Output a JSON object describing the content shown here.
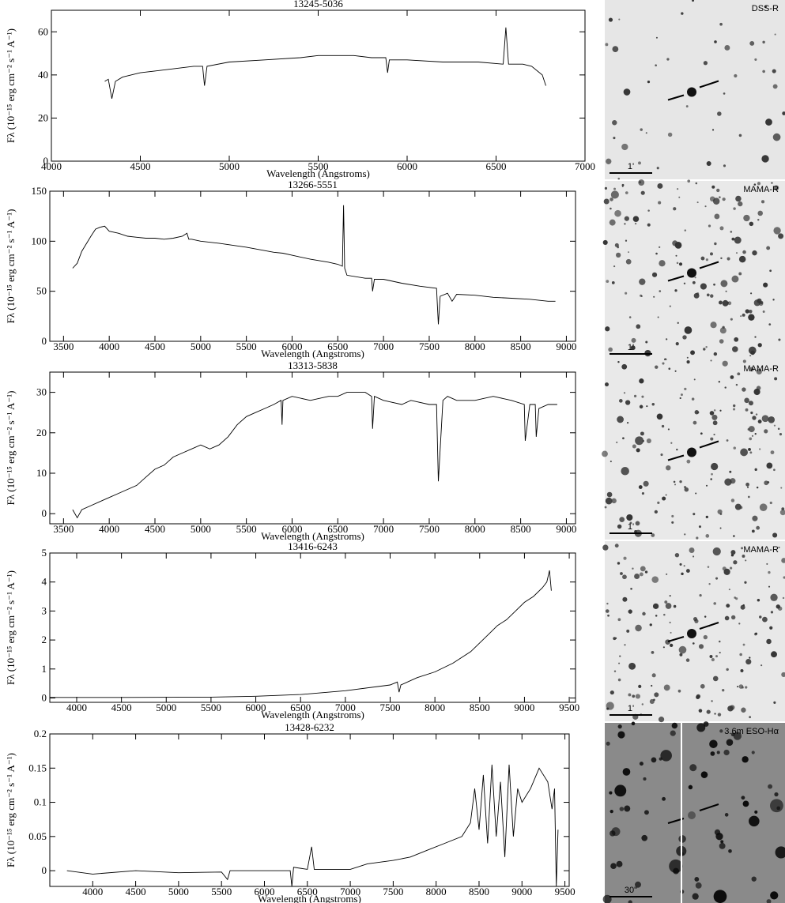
{
  "chart_data": [
    {
      "type": "line",
      "title": "13245-5036",
      "xlabel": "Wavelength (Angstroms)",
      "ylabel": "Fλ (10⁻¹⁵ erg cm⁻² s⁻¹ A⁻¹)",
      "color": "#000000",
      "xlim": [
        4000,
        7000
      ],
      "xticks": [
        4000,
        4500,
        5000,
        5500,
        6000,
        6500,
        7000
      ],
      "ylim": [
        0,
        70
      ],
      "yticks": [
        0,
        20,
        40,
        60
      ],
      "x": [
        4300,
        4320,
        4340,
        4360,
        4400,
        4500,
        4600,
        4700,
        4800,
        4850,
        4861,
        4875,
        5000,
        5200,
        5400,
        5500,
        5600,
        5700,
        5800,
        5880,
        5890,
        5900,
        6000,
        6200,
        6400,
        6540,
        6555,
        6570,
        6650,
        6700,
        6760,
        6780
      ],
      "values": [
        37,
        38,
        29,
        37,
        39,
        41,
        42,
        43,
        44,
        44,
        35,
        44,
        46,
        47,
        48,
        49,
        49,
        49,
        48,
        48,
        41,
        47,
        47,
        46,
        46,
        45,
        62,
        45,
        45,
        44,
        40,
        35
      ]
    },
    {
      "type": "line",
      "title": "13266-5551",
      "xlabel": "Wavelength (Angstroms)",
      "ylabel": "Fλ (10⁻¹⁵ erg cm⁻² s⁻¹ A⁻¹)",
      "color": "#000000",
      "xlim": [
        3350,
        9100
      ],
      "xticks": [
        3500,
        4000,
        4500,
        5000,
        5500,
        6000,
        6500,
        7000,
        7500,
        8000,
        8500,
        9000
      ],
      "ylim": [
        0,
        150
      ],
      "yticks": [
        0,
        50,
        100,
        150
      ],
      "x": [
        3600,
        3650,
        3700,
        3800,
        3850,
        3900,
        3950,
        4000,
        4100,
        4200,
        4300,
        4400,
        4500,
        4600,
        4700,
        4800,
        4850,
        4870,
        4900,
        5000,
        5200,
        5500,
        5800,
        5900,
        6000,
        6200,
        6400,
        6500,
        6550,
        6563,
        6575,
        6600,
        6800,
        6870,
        6880,
        6900,
        7000,
        7200,
        7400,
        7580,
        7600,
        7620,
        7700,
        7750,
        7800,
        8000,
        8200,
        8400,
        8600,
        8800,
        8880
      ],
      "values": [
        73,
        78,
        90,
        105,
        112,
        114,
        115,
        110,
        108,
        105,
        104,
        103,
        103,
        102,
        103,
        105,
        108,
        102,
        102,
        100,
        98,
        94,
        89,
        88,
        86,
        82,
        79,
        77,
        75,
        136,
        73,
        66,
        63,
        63,
        50,
        62,
        62,
        58,
        55,
        53,
        17,
        45,
        48,
        40,
        47,
        46,
        44,
        43,
        42,
        40,
        40
      ]
    },
    {
      "type": "line",
      "title": "13313-5838",
      "xlabel": "Wavelength (Angstroms)",
      "ylabel": "Fλ (10⁻¹⁵ erg cm⁻² s⁻¹ A⁻¹)",
      "color": "#000000",
      "xlim": [
        3350,
        9100
      ],
      "xticks": [
        3500,
        4000,
        4500,
        5000,
        5500,
        6000,
        6500,
        7000,
        7500,
        8000,
        8500,
        9000
      ],
      "ylim": [
        -2.5,
        35
      ],
      "yticks": [
        0,
        10,
        20,
        30
      ],
      "x": [
        3600,
        3650,
        3700,
        3800,
        3900,
        4000,
        4100,
        4200,
        4300,
        4400,
        4500,
        4600,
        4700,
        4800,
        4900,
        5000,
        5100,
        5200,
        5300,
        5400,
        5500,
        5600,
        5700,
        5800,
        5880,
        5890,
        5900,
        6000,
        6200,
        6400,
        6500,
        6600,
        6700,
        6800,
        6870,
        6880,
        6900,
        7000,
        7200,
        7300,
        7500,
        7580,
        7600,
        7650,
        7700,
        7800,
        8000,
        8200,
        8400,
        8540,
        8550,
        8600,
        8660,
        8670,
        8700,
        8800,
        8900
      ],
      "values": [
        1,
        -1,
        1,
        2,
        3,
        4,
        5,
        6,
        7,
        9,
        11,
        12,
        14,
        15,
        16,
        17,
        16,
        17,
        19,
        22,
        24,
        25,
        26,
        27,
        28,
        22,
        28,
        29,
        28,
        29,
        29,
        30,
        30,
        30,
        29,
        21,
        29,
        28,
        27,
        28,
        27,
        27,
        8,
        28,
        29,
        28,
        28,
        29,
        28,
        27,
        18,
        27,
        27,
        19,
        26,
        27,
        27
      ]
    },
    {
      "type": "line",
      "title": "13416-6243",
      "xlabel": "Wavelength (Angstroms)",
      "ylabel": "Fλ (10⁻¹⁵ erg cm⁻² s⁻¹ A⁻¹)",
      "color": "#000000",
      "xlim": [
        3700,
        9570
      ],
      "xticks": [
        4000,
        4500,
        5000,
        5500,
        6000,
        6500,
        7000,
        7500,
        8000,
        8500,
        9000,
        9500
      ],
      "ylim": [
        -0.15,
        5
      ],
      "yticks": [
        0,
        1,
        2,
        3,
        4,
        5
      ],
      "x": [
        3700,
        4500,
        5500,
        6000,
        6500,
        7000,
        7500,
        7580,
        7600,
        7620,
        7800,
        8000,
        8200,
        8400,
        8500,
        8600,
        8700,
        8800,
        8900,
        9000,
        9100,
        9200,
        9250,
        9280,
        9300
      ],
      "values": [
        0.02,
        0.02,
        0.03,
        0.06,
        0.12,
        0.25,
        0.45,
        0.55,
        0.2,
        0.45,
        0.7,
        0.9,
        1.2,
        1.6,
        1.9,
        2.2,
        2.5,
        2.7,
        3.0,
        3.3,
        3.5,
        3.8,
        4.0,
        4.4,
        3.7
      ]
    },
    {
      "type": "line",
      "title": "13428-6232",
      "xlabel": "Wavelength (Angstroms)",
      "ylabel": "Fλ (10⁻¹⁵ erg cm⁻² s⁻¹ A⁻¹)",
      "color": "#000000",
      "xlim": [
        3500,
        9550
      ],
      "xticks": [
        4000,
        4500,
        5000,
        5500,
        6000,
        6500,
        7000,
        7500,
        8000,
        8500,
        9000,
        9500
      ],
      "ylim": [
        -0.023,
        0.2
      ],
      "yticks": [
        0,
        0.05,
        0.1,
        0.15,
        0.2
      ],
      "x": [
        3700,
        4000,
        4500,
        5000,
        5500,
        5570,
        5600,
        6000,
        6300,
        6320,
        6340,
        6500,
        6550,
        6580,
        7000,
        7200,
        7500,
        7700,
        7900,
        8100,
        8300,
        8400,
        8450,
        8500,
        8550,
        8600,
        8650,
        8700,
        8750,
        8800,
        8850,
        8900,
        8950,
        9000,
        9100,
        9200,
        9300,
        9350,
        9380,
        9400,
        9420
      ],
      "values": [
        0,
        -0.005,
        0,
        -0.003,
        -0.002,
        -0.013,
        0,
        0,
        0,
        -0.023,
        0.005,
        0.002,
        0.035,
        0.002,
        0.002,
        0.01,
        0.015,
        0.02,
        0.03,
        0.04,
        0.05,
        0.07,
        0.12,
        0.06,
        0.14,
        0.04,
        0.155,
        0.05,
        0.13,
        0.02,
        0.155,
        0.05,
        0.12,
        0.1,
        0.12,
        0.15,
        0.13,
        0.09,
        0.12,
        -0.023,
        0.06
      ]
    }
  ],
  "images": [
    {
      "label": "DSS-R",
      "scale": "1'"
    },
    {
      "label": "MAMA-R",
      "scale": "1'"
    },
    {
      "label": "MAMA-R",
      "scale": "1'"
    },
    {
      "label": "MAMA-R",
      "scale": "1'"
    },
    {
      "label": "3.6m ESO-Hα",
      "scale": "30\""
    }
  ]
}
